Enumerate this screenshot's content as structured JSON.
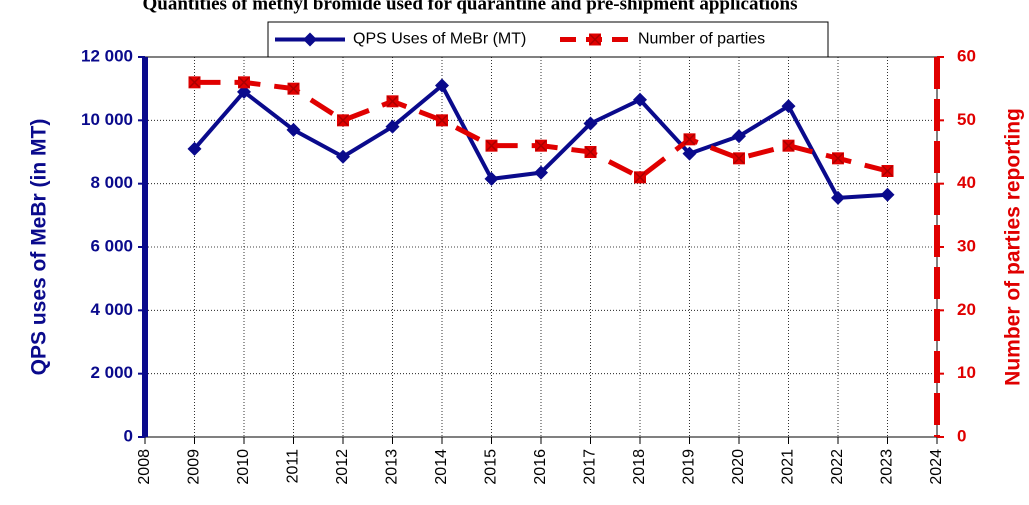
{
  "chart_data": {
    "type": "line",
    "title": "Quantities of methyl bromide used for quarantine and pre-shipment applications",
    "y_label": "QPS uses of MeBr (in MT)",
    "y2_label": "Number of parties reporting",
    "x": [
      2009,
      2010,
      2011,
      2012,
      2013,
      2014,
      2015,
      2016,
      2017,
      2018,
      2019,
      2020,
      2021,
      2022,
      2023
    ],
    "series": [
      {
        "name": "QPS Uses of MeBr (MT)",
        "color": "#0a0a8c",
        "values": [
          9100,
          10900,
          9700,
          8850,
          9800,
          11100,
          8150,
          8350,
          9900,
          10650,
          8950,
          9500,
          10450,
          7550,
          7650
        ]
      },
      {
        "name": "Number of parties",
        "color": "#e00000",
        "axis": "y2",
        "values": [
          56,
          56,
          55,
          50,
          53,
          50,
          46,
          46,
          45,
          41,
          47,
          44,
          46,
          44,
          42
        ]
      }
    ],
    "xlim": [
      2008,
      2024
    ],
    "xticks": [
      2008,
      2009,
      2010,
      2011,
      2012,
      2013,
      2014,
      2015,
      2016,
      2017,
      2018,
      2019,
      2020,
      2021,
      2022,
      2023,
      2024
    ],
    "ylim": [
      0,
      12000
    ],
    "yticks": [
      0,
      {
        "value": 2000,
        "label": "2 000"
      },
      {
        "value": 4000,
        "label": "4 000"
      },
      {
        "value": 6000,
        "label": "6 000"
      },
      {
        "value": 8000,
        "label": "8 000"
      },
      {
        "value": 10000,
        "label": "10 000"
      },
      {
        "value": 12000,
        "label": "12 000"
      }
    ],
    "y2lim": [
      0,
      60
    ],
    "y2ticks": [
      0,
      10,
      20,
      30,
      40,
      50,
      60
    ],
    "grid": true,
    "legend": "top"
  }
}
